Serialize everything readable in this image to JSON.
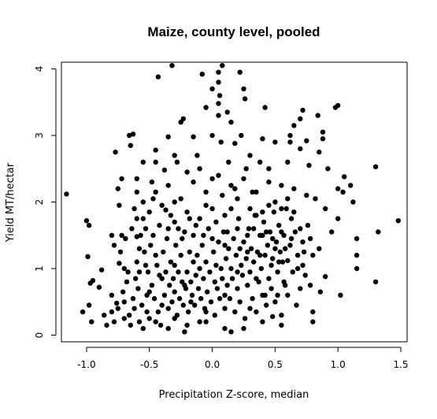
{
  "chart_data": {
    "type": "scatter",
    "title": "Maize, county level, pooled",
    "xlabel": "Precipitation Z-score, median",
    "ylabel": "Yield MT/hectar",
    "xlim": [
      -1.2,
      1.55
    ],
    "ylim": [
      -0.1,
      4.1
    ],
    "x_ticks": [
      -1.0,
      -0.5,
      0.0,
      0.5,
      1.0,
      1.5
    ],
    "x_tick_labels": [
      "-1.0",
      "-0.5",
      "0.0",
      "0.5",
      "1.0",
      "1.5"
    ],
    "y_ticks": [
      0,
      1,
      2,
      3,
      4
    ],
    "y_tick_labels": [
      "0",
      "1",
      "2",
      "3",
      "4"
    ],
    "grid": false,
    "box": true,
    "marker_color": "#000000",
    "points": [
      [
        -1.16,
        2.12
      ],
      [
        -1.0,
        1.72
      ],
      [
        -0.98,
        1.65
      ],
      [
        -0.99,
        1.18
      ],
      [
        -0.97,
        0.78
      ],
      [
        -0.95,
        0.82
      ],
      [
        -0.98,
        0.45
      ],
      [
        -1.03,
        0.35
      ],
      [
        -0.96,
        0.2
      ],
      [
        -0.88,
        0.98
      ],
      [
        -0.9,
        0.72
      ],
      [
        -0.86,
        0.3
      ],
      [
        -0.84,
        0.15
      ],
      [
        -0.8,
        1.5
      ],
      [
        -0.78,
        1.35
      ],
      [
        -0.8,
        0.6
      ],
      [
        -0.75,
        0.4
      ],
      [
        -0.77,
        2.75
      ],
      [
        -0.75,
        2.2
      ],
      [
        -0.74,
        1.95
      ],
      [
        -0.72,
        2.35
      ],
      [
        -0.7,
        1.0
      ],
      [
        -0.68,
        0.8
      ],
      [
        -0.7,
        0.5
      ],
      [
        -0.72,
        1.5
      ],
      [
        -0.66,
        3.0
      ],
      [
        -0.63,
        3.02
      ],
      [
        -0.65,
        2.85
      ],
      [
        -0.6,
        2.35
      ],
      [
        -0.6,
        2.15
      ],
      [
        -0.62,
        1.9
      ],
      [
        -0.6,
        1.48
      ],
      [
        -0.58,
        1.3
      ],
      [
        -0.6,
        1.1
      ],
      [
        -0.62,
        0.4
      ],
      [
        -0.58,
        0.2
      ],
      [
        -0.55,
        2.6
      ],
      [
        -0.55,
        1.75
      ],
      [
        -0.53,
        1.05
      ],
      [
        -0.5,
        0.65
      ],
      [
        -0.52,
        0.35
      ],
      [
        -0.48,
        2.3
      ],
      [
        -0.47,
        2.05
      ],
      [
        -0.45,
        2.78
      ],
      [
        -0.45,
        2.6
      ],
      [
        -0.45,
        1.2
      ],
      [
        -0.43,
        3.88
      ],
      [
        -0.42,
        0.9
      ],
      [
        -0.4,
        0.45
      ],
      [
        -0.38,
        2.48
      ],
      [
        -0.37,
        1.88
      ],
      [
        -0.35,
        2.98
      ],
      [
        -0.35,
        1.6
      ],
      [
        -0.32,
        4.05
      ],
      [
        -0.3,
        2.7
      ],
      [
        -0.3,
        2.0
      ],
      [
        -0.3,
        1.05
      ],
      [
        -0.3,
        0.25
      ],
      [
        -0.28,
        2.6
      ],
      [
        -0.25,
        3.2
      ],
      [
        -0.23,
        3.25
      ],
      [
        -0.24,
        1.45
      ],
      [
        -0.22,
        0.75
      ],
      [
        -0.22,
        0.05
      ],
      [
        -0.2,
        2.45
      ],
      [
        -0.18,
        1.75
      ],
      [
        -0.17,
        0.5
      ],
      [
        -0.15,
        2.98
      ],
      [
        -0.15,
        1.1
      ],
      [
        -0.12,
        2.7
      ],
      [
        -0.1,
        2.5
      ],
      [
        -0.1,
        0.2
      ],
      [
        -0.08,
        3.92
      ],
      [
        -0.05,
        3.42
      ],
      [
        -0.05,
        1.95
      ],
      [
        -0.05,
        0.35
      ],
      [
        0.0,
        3.7
      ],
      [
        0.0,
        3.0
      ],
      [
        0.0,
        2.35
      ],
      [
        0.0,
        1.45
      ],
      [
        0.02,
        0.8
      ],
      [
        0.05,
        3.95
      ],
      [
        0.05,
        3.8
      ],
      [
        0.06,
        3.6
      ],
      [
        0.05,
        3.48
      ],
      [
        0.05,
        3.3
      ],
      [
        0.08,
        4.05
      ],
      [
        0.07,
        2.9
      ],
      [
        0.08,
        2.1
      ],
      [
        0.1,
        1.35
      ],
      [
        0.1,
        0.6
      ],
      [
        0.12,
        3.35
      ],
      [
        0.13,
        2.6
      ],
      [
        0.15,
        3.2
      ],
      [
        0.15,
        1.9
      ],
      [
        0.15,
        0.05
      ],
      [
        0.18,
        2.88
      ],
      [
        0.18,
        2.2
      ],
      [
        0.2,
        1.6
      ],
      [
        0.2,
        0.95
      ],
      [
        0.22,
        3.95
      ],
      [
        0.23,
        3.0
      ],
      [
        0.25,
        3.7
      ],
      [
        0.26,
        3.55
      ],
      [
        0.27,
        2.5
      ],
      [
        0.28,
        1.25
      ],
      [
        0.3,
        2.7
      ],
      [
        0.3,
        0.4
      ],
      [
        0.32,
        2.15
      ],
      [
        0.35,
        1.8
      ],
      [
        0.35,
        0.85
      ],
      [
        0.38,
        2.6
      ],
      [
        0.4,
        2.95
      ],
      [
        0.4,
        1.5
      ],
      [
        0.42,
        3.42
      ],
      [
        0.42,
        0.6
      ],
      [
        0.45,
        2.5
      ],
      [
        0.45,
        1.95
      ],
      [
        0.47,
        1.05
      ],
      [
        0.48,
        0.28
      ],
      [
        0.5,
        2.9
      ],
      [
        0.5,
        1.3
      ],
      [
        0.52,
        0.6
      ],
      [
        0.55,
        2.25
      ],
      [
        0.55,
        1.55
      ],
      [
        0.57,
        0.8
      ],
      [
        0.6,
        2.6
      ],
      [
        0.6,
        1.12
      ],
      [
        0.62,
        3.0
      ],
      [
        0.62,
        2.9
      ],
      [
        0.63,
        1.75
      ],
      [
        0.65,
        3.15
      ],
      [
        0.65,
        2.2
      ],
      [
        0.67,
        0.45
      ],
      [
        0.7,
        3.25
      ],
      [
        0.7,
        2.8
      ],
      [
        0.7,
        1.6
      ],
      [
        0.72,
        3.38
      ],
      [
        0.72,
        1.05
      ],
      [
        0.75,
        2.92
      ],
      [
        0.75,
        2.1
      ],
      [
        0.77,
        2.55
      ],
      [
        0.78,
        1.45
      ],
      [
        0.78,
        0.75
      ],
      [
        0.8,
        1.2
      ],
      [
        0.8,
        0.35
      ],
      [
        0.82,
        2.05
      ],
      [
        0.84,
        3.3
      ],
      [
        0.85,
        2.75
      ],
      [
        0.85,
        1.3
      ],
      [
        0.86,
        0.65
      ],
      [
        0.88,
        3.05
      ],
      [
        0.88,
        2.95
      ],
      [
        0.9,
        1.9
      ],
      [
        0.9,
        0.88
      ],
      [
        0.92,
        2.5
      ],
      [
        0.95,
        1.55
      ],
      [
        0.98,
        3.42
      ],
      [
        1.0,
        3.45
      ],
      [
        1.0,
        2.2
      ],
      [
        1.0,
        1.75
      ],
      [
        1.02,
        0.6
      ],
      [
        1.04,
        2.15
      ],
      [
        1.05,
        2.38
      ],
      [
        1.1,
        2.25
      ],
      [
        1.12,
        2.0
      ],
      [
        1.15,
        1.45
      ],
      [
        1.15,
        1.2
      ],
      [
        1.15,
        1.0
      ],
      [
        1.3,
        2.53
      ],
      [
        1.32,
        1.55
      ],
      [
        1.48,
        1.72
      ],
      [
        1.3,
        0.8
      ],
      [
        -0.8,
        0.35
      ],
      [
        -0.78,
        0.2
      ],
      [
        -0.76,
        0.48
      ],
      [
        -0.74,
        1.08
      ],
      [
        -0.73,
        1.25
      ],
      [
        -0.71,
        0.65
      ],
      [
        -0.69,
        1.45
      ],
      [
        -0.67,
        0.95
      ],
      [
        -0.66,
        0.3
      ],
      [
        -0.64,
        1.6
      ],
      [
        -0.63,
        0.55
      ],
      [
        -0.61,
        0.85
      ],
      [
        -0.59,
        0.7
      ],
      [
        -0.57,
        1.5
      ],
      [
        -0.56,
        0.45
      ],
      [
        -0.54,
        1.25
      ],
      [
        -0.53,
        1.6
      ],
      [
        -0.51,
        0.95
      ],
      [
        -0.5,
        0.25
      ],
      [
        -0.49,
        1.35
      ],
      [
        -0.48,
        0.75
      ],
      [
        -0.46,
        0.55
      ],
      [
        -0.44,
        1.05
      ],
      [
        -0.43,
        0.35
      ],
      [
        -0.42,
        1.65
      ],
      [
        -0.41,
        0.15
      ],
      [
        -0.4,
        0.85
      ],
      [
        -0.39,
        1.25
      ],
      [
        -0.38,
        0.6
      ],
      [
        -0.37,
        0.95
      ],
      [
        -0.36,
        1.45
      ],
      [
        -0.35,
        0.4
      ],
      [
        -0.34,
        0.75
      ],
      [
        -0.33,
        1.1
      ],
      [
        -0.32,
        0.5
      ],
      [
        -0.31,
        0.85
      ],
      [
        -0.3,
        0.65
      ],
      [
        -0.29,
        1.35
      ],
      [
        -0.28,
        0.3
      ],
      [
        -0.27,
        0.95
      ],
      [
        -0.26,
        0.55
      ],
      [
        -0.25,
        1.2
      ],
      [
        -0.24,
        0.8
      ],
      [
        -0.23,
        0.45
      ],
      [
        -0.22,
        1.55
      ],
      [
        -0.21,
        0.7
      ],
      [
        -0.2,
        0.95
      ],
      [
        -0.19,
        0.35
      ],
      [
        -0.18,
        1.25
      ],
      [
        -0.17,
        0.8
      ],
      [
        -0.16,
        0.6
      ],
      [
        -0.15,
        1.5
      ],
      [
        -0.14,
        0.45
      ],
      [
        -0.13,
        0.9
      ],
      [
        -0.12,
        1.2
      ],
      [
        -0.11,
        0.7
      ],
      [
        -0.1,
        1.0
      ],
      [
        -0.09,
        0.55
      ],
      [
        -0.08,
        1.35
      ],
      [
        -0.07,
        0.85
      ],
      [
        -0.06,
        0.4
      ],
      [
        -0.05,
        1.1
      ],
      [
        -0.04,
        0.65
      ],
      [
        -0.03,
        1.6
      ],
      [
        -0.02,
        0.95
      ],
      [
        -0.01,
        0.5
      ],
      [
        0.01,
        1.25
      ],
      [
        0.02,
        0.3
      ],
      [
        0.03,
        1.05
      ],
      [
        0.04,
        0.7
      ],
      [
        0.05,
        1.4
      ],
      [
        0.06,
        0.55
      ],
      [
        0.07,
        1.0
      ],
      [
        0.08,
        0.85
      ],
      [
        0.09,
        1.55
      ],
      [
        0.1,
        0.4
      ],
      [
        0.11,
        1.15
      ],
      [
        0.12,
        0.75
      ],
      [
        0.13,
        1.3
      ],
      [
        0.14,
        0.55
      ],
      [
        0.15,
        1.0
      ],
      [
        0.16,
        0.85
      ],
      [
        0.17,
        1.45
      ],
      [
        0.18,
        0.35
      ],
      [
        0.19,
        1.2
      ],
      [
        0.2,
        0.7
      ],
      [
        0.21,
        1.75
      ],
      [
        0.22,
        0.5
      ],
      [
        0.23,
        1.05
      ],
      [
        0.24,
        0.9
      ],
      [
        0.25,
        1.4
      ],
      [
        0.26,
        0.25
      ],
      [
        0.27,
        1.15
      ],
      [
        0.28,
        0.75
      ],
      [
        0.29,
        1.6
      ],
      [
        0.3,
        0.95
      ],
      [
        0.31,
        1.3
      ],
      [
        0.32,
        0.55
      ],
      [
        0.33,
        1.1
      ],
      [
        0.34,
        1.8
      ],
      [
        0.35,
        0.35
      ],
      [
        0.36,
        1.25
      ],
      [
        0.37,
        0.8
      ],
      [
        0.38,
        1.5
      ],
      [
        0.39,
        1.0
      ],
      [
        0.4,
        0.6
      ],
      [
        0.41,
        1.7
      ],
      [
        0.42,
        1.2
      ],
      [
        0.43,
        0.45
      ],
      [
        0.44,
        1.35
      ],
      [
        0.45,
        0.85
      ],
      [
        0.46,
        1.55
      ],
      [
        0.47,
        0.7
      ],
      [
        0.48,
        1.15
      ],
      [
        0.49,
        1.85
      ],
      [
        0.5,
        0.5
      ],
      [
        0.51,
        1.4
      ],
      [
        0.52,
        0.95
      ],
      [
        0.53,
        1.65
      ],
      [
        0.54,
        1.25
      ],
      [
        0.55,
        0.3
      ],
      [
        0.56,
        1.1
      ],
      [
        0.57,
        1.5
      ],
      [
        0.58,
        0.75
      ],
      [
        0.59,
        1.9
      ],
      [
        0.6,
        0.6
      ],
      [
        0.62,
        1.35
      ],
      [
        0.64,
        0.95
      ],
      [
        0.66,
        1.55
      ],
      [
        0.68,
        1.2
      ],
      [
        0.7,
        0.7
      ],
      [
        0.72,
        1.4
      ],
      [
        0.74,
        0.9
      ],
      [
        0.76,
        1.65
      ],
      [
        -0.6,
        1.75
      ],
      [
        -0.55,
        2.0
      ],
      [
        -0.5,
        1.85
      ],
      [
        -0.45,
        2.15
      ],
      [
        -0.4,
        1.95
      ],
      [
        -0.35,
        2.25
      ],
      [
        -0.3,
        1.7
      ],
      [
        -0.25,
        2.05
      ],
      [
        -0.2,
        1.85
      ],
      [
        -0.15,
        2.3
      ],
      [
        -0.1,
        1.75
      ],
      [
        -0.05,
        2.15
      ],
      [
        0.0,
        1.9
      ],
      [
        0.05,
        2.4
      ],
      [
        0.1,
        1.8
      ],
      [
        0.15,
        2.25
      ],
      [
        0.2,
        2.05
      ],
      [
        0.25,
        2.35
      ],
      [
        0.3,
        1.9
      ],
      [
        0.35,
        2.15
      ],
      [
        0.4,
        1.85
      ],
      [
        0.45,
        2.3
      ],
      [
        0.5,
        2.0
      ],
      [
        0.55,
        1.9
      ],
      [
        0.6,
        2.05
      ],
      [
        0.65,
        1.85
      ],
      [
        -0.58,
        0.95
      ],
      [
        -0.52,
        0.6
      ],
      [
        -0.47,
        1.5
      ],
      [
        -0.33,
        1.8
      ],
      [
        -0.27,
        1.6
      ],
      [
        -0.13,
        1.65
      ],
      [
        -0.07,
        1.5
      ],
      [
        0.03,
        1.7
      ],
      [
        0.12,
        1.55
      ],
      [
        0.22,
        1.3
      ],
      [
        0.28,
        1.5
      ],
      [
        0.33,
        1.6
      ],
      [
        0.38,
        1.2
      ],
      [
        0.43,
        1.55
      ],
      [
        0.48,
        1.45
      ],
      [
        0.53,
        1.1
      ],
      [
        0.58,
        1.3
      ],
      [
        0.63,
        1.45
      ],
      [
        0.68,
        1.0
      ],
      [
        0.73,
        1.25
      ],
      [
        -0.7,
        0.25
      ],
      [
        -0.65,
        0.15
      ],
      [
        -0.55,
        0.1
      ],
      [
        -0.45,
        0.2
      ],
      [
        -0.35,
        0.1
      ],
      [
        -0.2,
        0.15
      ],
      [
        -0.05,
        0.2
      ],
      [
        0.1,
        0.1
      ],
      [
        0.25,
        0.1
      ],
      [
        0.4,
        0.2
      ],
      [
        0.55,
        0.15
      ],
      [
        0.8,
        0.2
      ]
    ]
  }
}
